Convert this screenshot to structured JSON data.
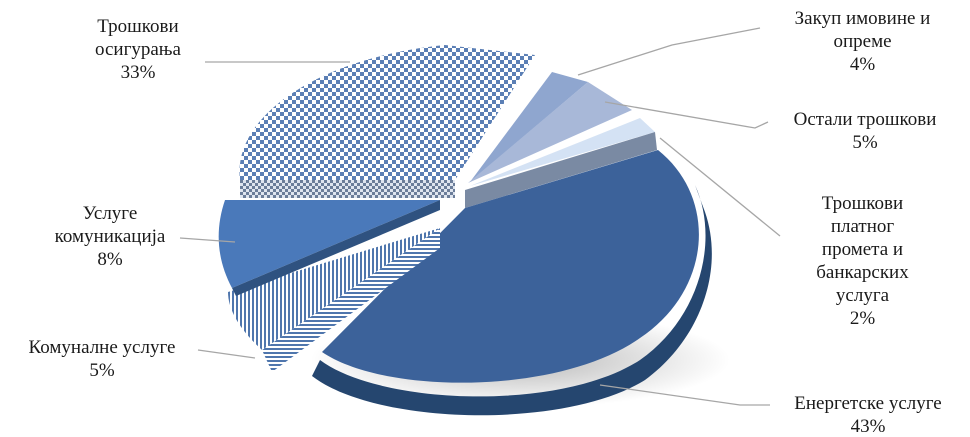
{
  "chart_data": {
    "type": "pie",
    "title": "",
    "series": [
      {
        "name": "",
        "values": [
          {
            "category": "Трошкови осигурања",
            "value": 33,
            "label": "33%"
          },
          {
            "category": "Закуп имовине и опреме",
            "value": 4,
            "label": "4%"
          },
          {
            "category": "Остали трошкови",
            "value": 5,
            "label": "5%"
          },
          {
            "category": "Трошкови платног промета и банкарских услуга",
            "value": 2,
            "label": "2%"
          },
          {
            "category": "Енергетске услуге",
            "value": 43,
            "label": "43%"
          },
          {
            "category": "Комуналне услуге",
            "value": 5,
            "label": "5%"
          },
          {
            "category": "Услуге комуникација",
            "value": 8,
            "label": "8%"
          }
        ]
      }
    ],
    "style": "3d-exploded",
    "legend": "none"
  },
  "labels": {
    "osiguranje": {
      "lines": [
        "Трошкови",
        "осигурања"
      ],
      "pct": "33%"
    },
    "zakup": {
      "lines": [
        "Закуп имовине и",
        "опреме"
      ],
      "pct": "4%"
    },
    "ostali": {
      "lines": [
        "Остали трошкови"
      ],
      "pct": "5%"
    },
    "platni": {
      "lines": [
        "Трошкови",
        "платног",
        "промета и",
        "банкарских",
        "услуга"
      ],
      "pct": "2%"
    },
    "energetske": {
      "lines": [
        "Енергетске услуге"
      ],
      "pct": "43%"
    },
    "komunalne": {
      "lines": [
        "Комуналне услуге"
      ],
      "pct": "5%"
    },
    "komunikacije": {
      "lines": [
        "Услуге",
        "комуникација"
      ],
      "pct": "8%"
    }
  },
  "colors": {
    "osiguranje": "#5b7fb5",
    "zakup": "#8fa6cf",
    "ostali": "#a8b8d8",
    "platni": "#d4e2f4",
    "energetske": "#3c629a",
    "komunalne": "#4f76ad",
    "komunikacije": "#4a79ba",
    "leader": "#a6a6a6"
  }
}
